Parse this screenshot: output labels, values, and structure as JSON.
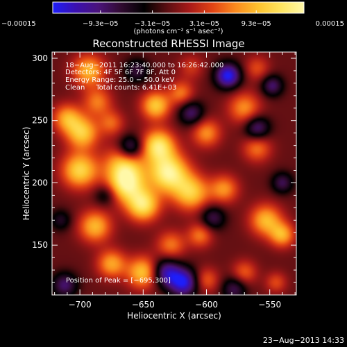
{
  "chart_data": {
    "type": "heatmap",
    "title": "Reconstructed RHESSI Image",
    "xlabel": "Heliocentric X (arcsec)",
    "ylabel": "Heliocentric Y (arcsec)",
    "xlim": [
      -722,
      -529
    ],
    "ylim": [
      110,
      305
    ],
    "x_ticks": [
      -700,
      -650,
      -600,
      -550
    ],
    "x_tick_labels": [
      "−700",
      "−650",
      "−600",
      "−550"
    ],
    "y_ticks": [
      150,
      200,
      250,
      300
    ],
    "y_tick_labels": [
      "150",
      "200",
      "250",
      "300"
    ],
    "colorbar": {
      "range": [
        -0.00015,
        0.00015
      ],
      "ticks": [
        -0.00015,
        -9.3e-05,
        -3.1e-05,
        3.1e-05,
        9.3e-05,
        0.00015
      ],
      "tick_labels": [
        "−0.00015",
        "−9.3e−05",
        "−3.1e−05",
        "3.1e−05",
        "9.3e−05",
        "0.00015"
      ],
      "units": "(photons cm⁻² s⁻¹ asec⁻²)",
      "colormap": [
        "#1e1efa",
        "#3a10b0",
        "#4a137a",
        "#300a30",
        "#000000",
        "#5a0e12",
        "#a81a18",
        "#e24414",
        "#fb8a1e",
        "#fdc22e",
        "#ffe560",
        "#fff8a8"
      ]
    },
    "info_lines": [
      "18−Aug−2011 16:23:40.000 to 16:26:42.000",
      "Detectors: 4F 5F 6F 7F 8F, Att 0",
      "Energy Range: 25.0 − 50.0 keV",
      "Clean     Total counts: 6.41E+03"
    ],
    "peak_text": "Position of Peak = [−695,300]",
    "peak": {
      "x": -695,
      "y": 300
    },
    "sources": [
      {
        "x": -700,
        "y": 210,
        "value": 0.00012,
        "width": 10
      },
      {
        "x": -698,
        "y": 240,
        "value": 0.00011,
        "width": 9
      },
      {
        "x": -710,
        "y": 252,
        "value": 9e-05,
        "width": 8
      },
      {
        "x": -693,
        "y": 290,
        "value": 0.0001,
        "width": 9
      },
      {
        "x": -686,
        "y": 265,
        "value": 7e-05,
        "width": 8
      },
      {
        "x": -675,
        "y": 248,
        "value": 6e-05,
        "width": 7
      },
      {
        "x": -665,
        "y": 214,
        "value": 0.00011,
        "width": 11
      },
      {
        "x": -663,
        "y": 198,
        "value": 0.00012,
        "width": 10
      },
      {
        "x": -650,
        "y": 182,
        "value": 0.00013,
        "width": 9
      },
      {
        "x": -638,
        "y": 230,
        "value": 0.00013,
        "width": 9
      },
      {
        "x": -630,
        "y": 208,
        "value": 0.00015,
        "width": 11
      },
      {
        "x": -640,
        "y": 262,
        "value": 0.00011,
        "width": 8
      },
      {
        "x": -620,
        "y": 272,
        "value": 7e-05,
        "width": 7
      },
      {
        "x": -612,
        "y": 192,
        "value": 0.00011,
        "width": 10
      },
      {
        "x": -600,
        "y": 240,
        "value": 8e-05,
        "width": 8
      },
      {
        "x": -586,
        "y": 195,
        "value": 8e-05,
        "width": 8
      },
      {
        "x": -570,
        "y": 260,
        "value": 8e-05,
        "width": 9
      },
      {
        "x": -560,
        "y": 228,
        "value": 7e-05,
        "width": 8
      },
      {
        "x": -553,
        "y": 170,
        "value": 0.0001,
        "width": 9
      },
      {
        "x": -540,
        "y": 158,
        "value": 9e-05,
        "width": 7
      },
      {
        "x": -688,
        "y": 165,
        "value": 0.0001,
        "width": 9
      },
      {
        "x": -675,
        "y": 135,
        "value": 9e-05,
        "width": 8
      },
      {
        "x": -650,
        "y": 128,
        "value": 0.00011,
        "width": 9
      },
      {
        "x": -628,
        "y": 150,
        "value": 7e-05,
        "width": 8
      },
      {
        "x": -605,
        "y": 158,
        "value": 7e-05,
        "width": 7
      },
      {
        "x": -600,
        "y": 122,
        "value": 6e-05,
        "width": 7
      },
      {
        "x": -570,
        "y": 128,
        "value": 6e-05,
        "width": 7
      },
      {
        "x": -545,
        "y": 120,
        "value": 5e-05,
        "width": 6
      },
      {
        "x": -612,
        "y": 293,
        "value": 4e-05,
        "width": 7
      },
      {
        "x": -560,
        "y": 292,
        "value": 5e-05,
        "width": 7
      },
      {
        "x": -632,
        "y": 128,
        "value": -0.00011,
        "width": 8
      },
      {
        "x": -618,
        "y": 120,
        "value": -0.00013,
        "width": 8
      },
      {
        "x": -660,
        "y": 228,
        "value": -0.0001,
        "width": 7
      },
      {
        "x": -583,
        "y": 286,
        "value": -0.00014,
        "width": 7
      },
      {
        "x": -560,
        "y": 244,
        "value": -9e-05,
        "width": 7
      },
      {
        "x": -548,
        "y": 278,
        "value": -8e-05,
        "width": 6
      },
      {
        "x": -612,
        "y": 256,
        "value": -8e-05,
        "width": 7
      },
      {
        "x": -712,
        "y": 118,
        "value": -8e-05,
        "width": 7
      },
      {
        "x": -595,
        "y": 172,
        "value": -7e-05,
        "width": 7
      },
      {
        "x": -540,
        "y": 200,
        "value": -7e-05,
        "width": 6
      },
      {
        "x": -655,
        "y": 290,
        "value": -6e-05,
        "width": 7
      },
      {
        "x": -715,
        "y": 170,
        "value": -5e-05,
        "width": 6
      },
      {
        "x": -578,
        "y": 115,
        "value": -7e-05,
        "width": 7
      },
      {
        "x": -680,
        "y": 190,
        "value": -5e-05,
        "width": 6
      }
    ]
  },
  "footer": {
    "timestamp": "23−Aug−2013 14:33"
  }
}
